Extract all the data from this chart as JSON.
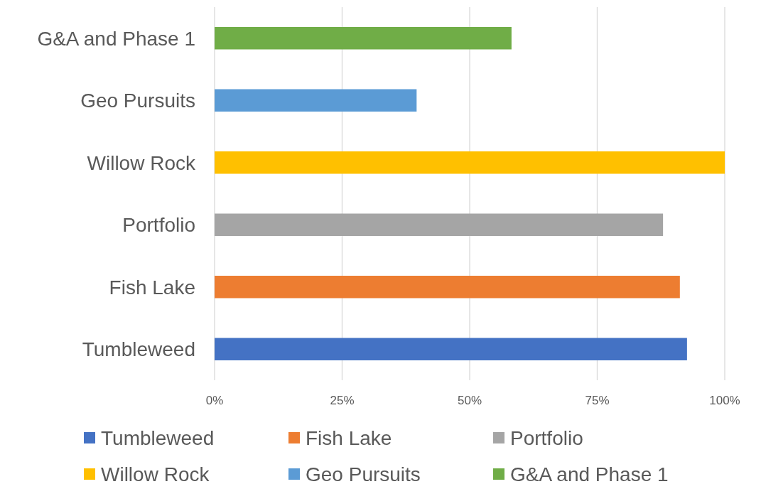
{
  "chart_data": {
    "type": "bar",
    "orientation": "horizontal",
    "categories": [
      "G&A and Phase 1",
      "Geo Pursuits",
      "Willow Rock",
      "Portfolio",
      "Fish Lake",
      "Tumbleweed"
    ],
    "series": [
      {
        "name": "Tumbleweed",
        "color": "#4472c4",
        "values": [
          null,
          null,
          null,
          null,
          null,
          92.6
        ]
      },
      {
        "name": "Fish Lake",
        "color": "#ed7d31",
        "values": [
          null,
          null,
          null,
          null,
          91.2,
          null
        ]
      },
      {
        "name": "Portfolio",
        "color": "#a5a5a5",
        "values": [
          null,
          null,
          null,
          87.9,
          null,
          null
        ]
      },
      {
        "name": "Willow Rock",
        "color": "#ffc000",
        "values": [
          null,
          null,
          100,
          null,
          null,
          null
        ]
      },
      {
        "name": "Geo Pursuits",
        "color": "#5b9bd5",
        "values": [
          null,
          39.6,
          null,
          null,
          null,
          null
        ]
      },
      {
        "name": "G&A and Phase 1",
        "color": "#70ad47",
        "values": [
          58.2,
          null,
          null,
          null,
          null,
          null
        ]
      }
    ],
    "xlim": [
      0,
      100
    ],
    "xticks": [
      {
        "value": 0,
        "label": "0%"
      },
      {
        "value": 25,
        "label": "25%"
      },
      {
        "value": 50,
        "label": "50%"
      },
      {
        "value": 75,
        "label": "75%"
      },
      {
        "value": 100,
        "label": "100%"
      }
    ],
    "grid": "x",
    "legend": "bottom"
  }
}
